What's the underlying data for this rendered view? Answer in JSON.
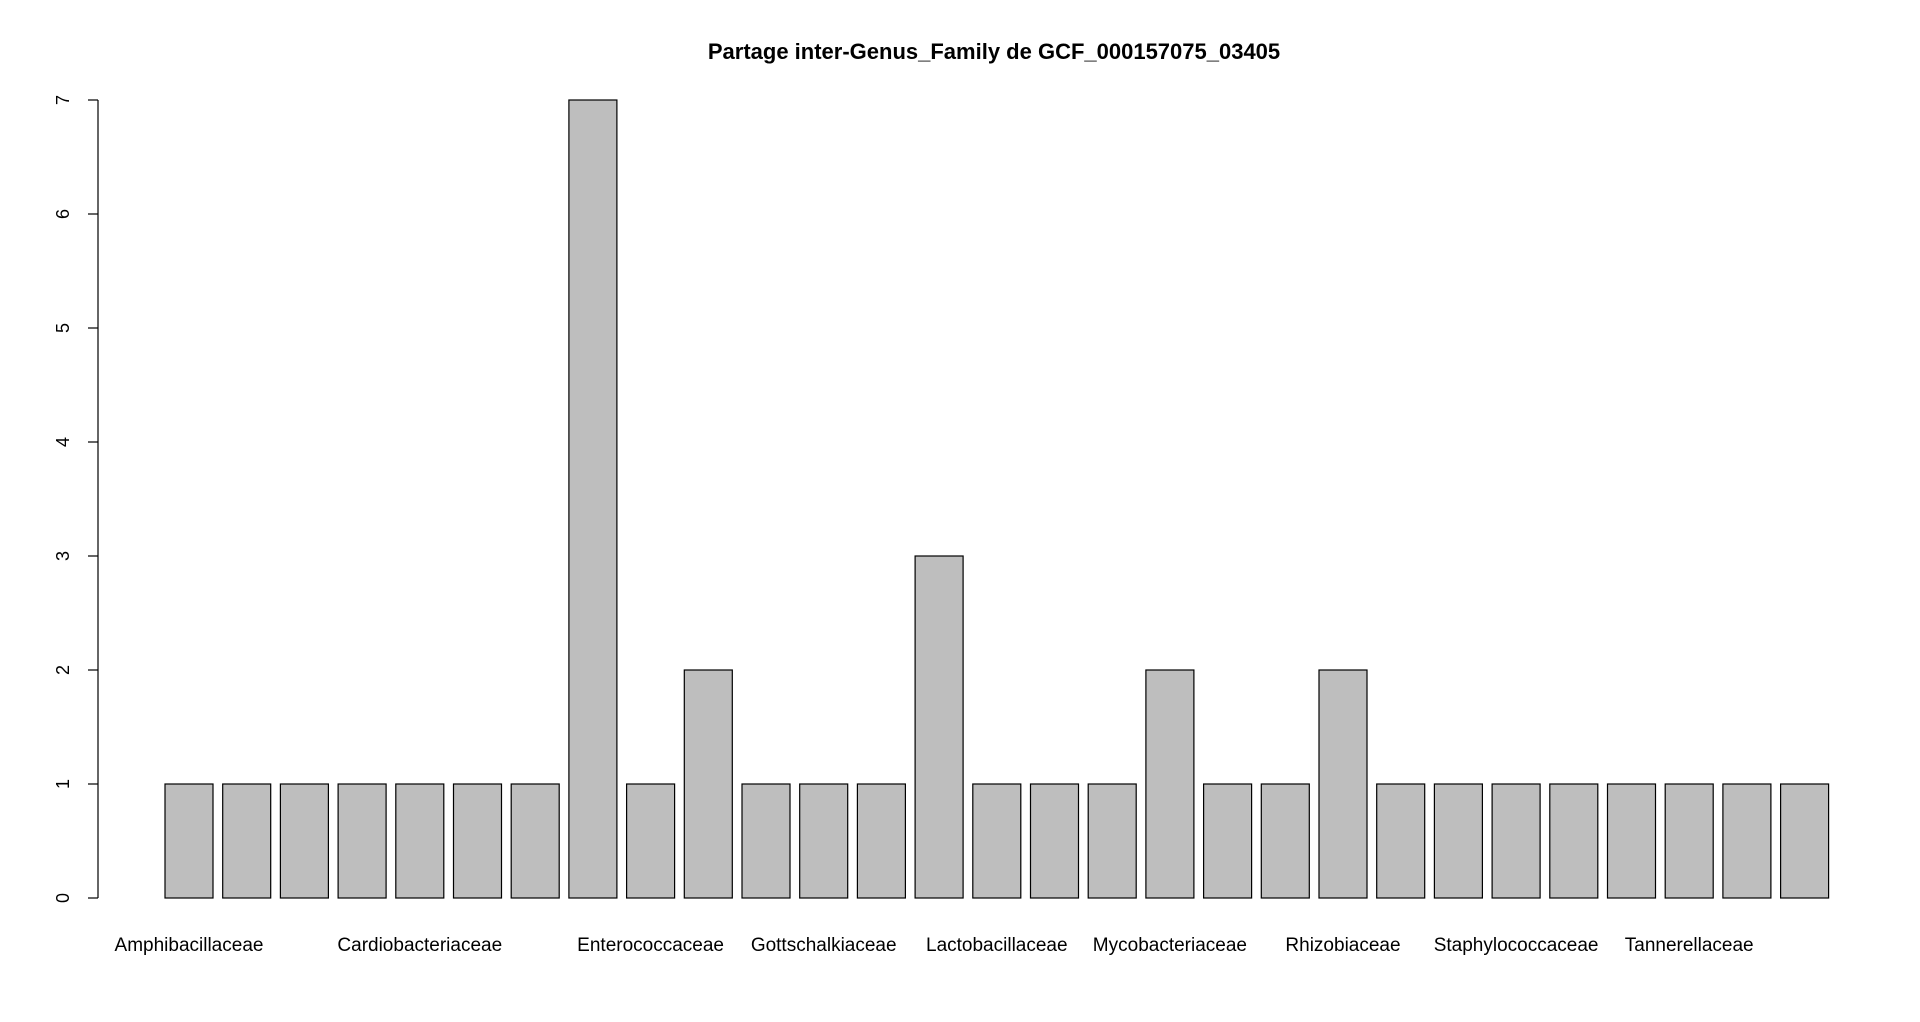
{
  "chart_data": {
    "type": "bar",
    "title": "Partage inter-Genus_Family de GCF_000157075_03405",
    "xlabel": "",
    "ylabel": "",
    "ylim": [
      0,
      7
    ],
    "yticks": [
      0,
      1,
      2,
      3,
      4,
      5,
      6,
      7
    ],
    "grid": false,
    "categories": [
      "Amphibacillaceae",
      "",
      "",
      "",
      "Cardiobacteriaceae",
      "",
      "",
      "",
      "Enterococcaceae",
      "",
      "",
      "Gottschalkiaceae",
      "",
      "",
      "Lactobacillaceae",
      "",
      "",
      "Mycobacteriaceae",
      "",
      "",
      "Rhizobiaceae",
      "",
      "",
      "Staphylococcaceae",
      "",
      "",
      "Tannerellaceae",
      "",
      ""
    ],
    "values": [
      1,
      1,
      1,
      1,
      1,
      1,
      1,
      7,
      1,
      2,
      1,
      1,
      1,
      3,
      1,
      1,
      1,
      2,
      1,
      1,
      2,
      1,
      1,
      1,
      1,
      1,
      1,
      1,
      1
    ],
    "colors": {
      "bar_fill": "#bebebe",
      "bar_stroke": "#000000",
      "axis": "#000000"
    }
  }
}
